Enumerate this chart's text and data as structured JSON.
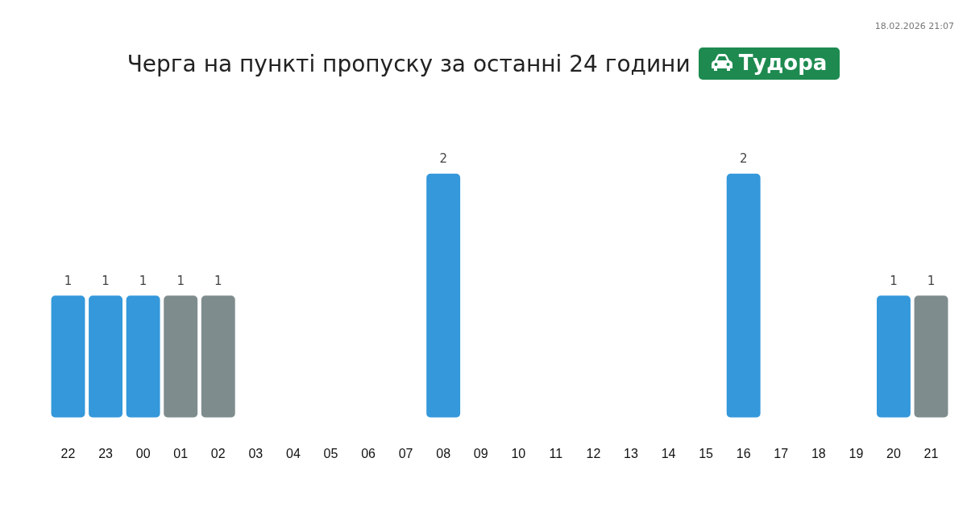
{
  "chart_data": {
    "type": "bar",
    "title": "Черга на пункті пропуску за останні 24 години",
    "subtitle": "Тудора",
    "annotations": [
      "18.02.2026 21:07"
    ],
    "categories": [
      "22",
      "23",
      "00",
      "01",
      "02",
      "03",
      "04",
      "05",
      "06",
      "07",
      "08",
      "09",
      "10",
      "11",
      "12",
      "13",
      "14",
      "15",
      "16",
      "17",
      "18",
      "19",
      "20",
      "21"
    ],
    "values": [
      1,
      1,
      1,
      1,
      1,
      0,
      0,
      0,
      0,
      0,
      2,
      0,
      0,
      0,
      0,
      0,
      0,
      0,
      2,
      0,
      0,
      0,
      1,
      1
    ],
    "colors": [
      "#3498db",
      "#3498db",
      "#3498db",
      "#7f8c8d",
      "#7f8c8d",
      "#3498db",
      "#3498db",
      "#3498db",
      "#3498db",
      "#3498db",
      "#3498db",
      "#3498db",
      "#3498db",
      "#3498db",
      "#3498db",
      "#3498db",
      "#3498db",
      "#3498db",
      "#3498db",
      "#3498db",
      "#3498db",
      "#3498db",
      "#3498db",
      "#7f8c8d"
    ],
    "value_labels": [
      "1",
      "1",
      "1",
      "1",
      "1",
      null,
      null,
      null,
      null,
      null,
      "2",
      null,
      null,
      null,
      null,
      null,
      null,
      null,
      "2",
      null,
      null,
      null,
      "1",
      "1"
    ],
    "grid": false,
    "legend": false
  }
}
